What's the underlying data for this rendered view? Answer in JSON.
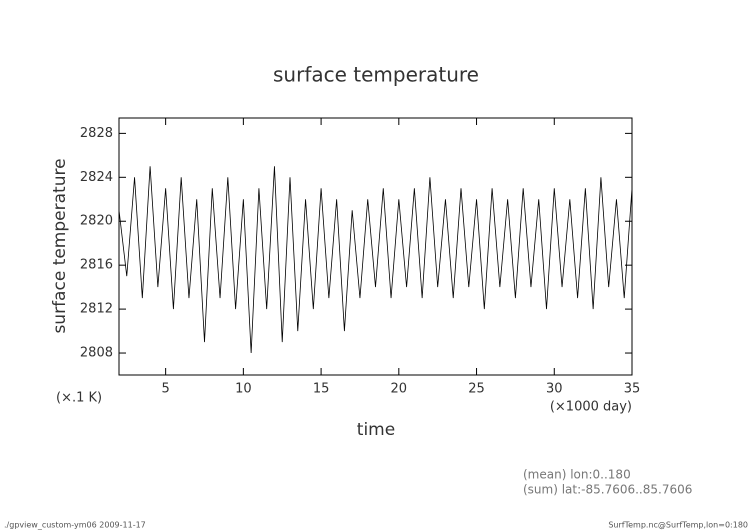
{
  "chart_data": {
    "type": "line",
    "title": "surface temperature",
    "x_label": "time",
    "y_label": "surface temperature",
    "x_unit": "(×1000 day)",
    "y_unit": "(×.1 K)",
    "notes": [
      "(mean) lon:0..180",
      "(sum) lat:-85.7606..85.7606"
    ],
    "footer_left": "./gpview_custom-ym06  2009-11-17",
    "footer_right": "SurfTemp.nc@SurfTemp,lon=0:180",
    "xlim": [
      2,
      35
    ],
    "ylim": [
      2806,
      2829.4
    ],
    "xticks": [
      5,
      10,
      15,
      20,
      25,
      30,
      35
    ],
    "yticks": [
      2808,
      2812,
      2816,
      2820,
      2824,
      2828
    ],
    "x": [
      2,
      2.5,
      3,
      3.5,
      4,
      4.5,
      5,
      5.5,
      6,
      6.5,
      7,
      7.5,
      8,
      8.5,
      9,
      9.5,
      10,
      10.5,
      11,
      11.5,
      12,
      12.5,
      13,
      13.5,
      14,
      14.5,
      15,
      15.5,
      16,
      16.5,
      17,
      17.5,
      18,
      18.5,
      19,
      19.5,
      20,
      20.5,
      21,
      21.5,
      22,
      22.5,
      23,
      23.5,
      24,
      24.5,
      25,
      25.5,
      26,
      26.5,
      27,
      27.5,
      28,
      28.5,
      29,
      29.5,
      30,
      30.5,
      31,
      31.5,
      32,
      32.5,
      33,
      33.5,
      34,
      34.5,
      35
    ],
    "series": [
      {
        "color": "#000000",
        "values": [
          2821,
          2815,
          2824,
          2813,
          2825,
          2814,
          2823,
          2812,
          2824,
          2813,
          2822,
          2809,
          2823,
          2813,
          2824,
          2812,
          2822,
          2808,
          2823,
          2812,
          2825,
          2809,
          2824,
          2810,
          2822,
          2812,
          2823,
          2813,
          2822,
          2810,
          2821,
          2813,
          2822,
          2814,
          2823,
          2813,
          2822,
          2814,
          2823,
          2813,
          2824,
          2814,
          2822,
          2813,
          2823,
          2814,
          2822,
          2812,
          2823,
          2814,
          2822,
          2813,
          2823,
          2814,
          2822,
          2812,
          2823,
          2814,
          2822,
          2813,
          2823,
          2812,
          2824,
          2814,
          2822,
          2813,
          2823
        ]
      }
    ]
  }
}
